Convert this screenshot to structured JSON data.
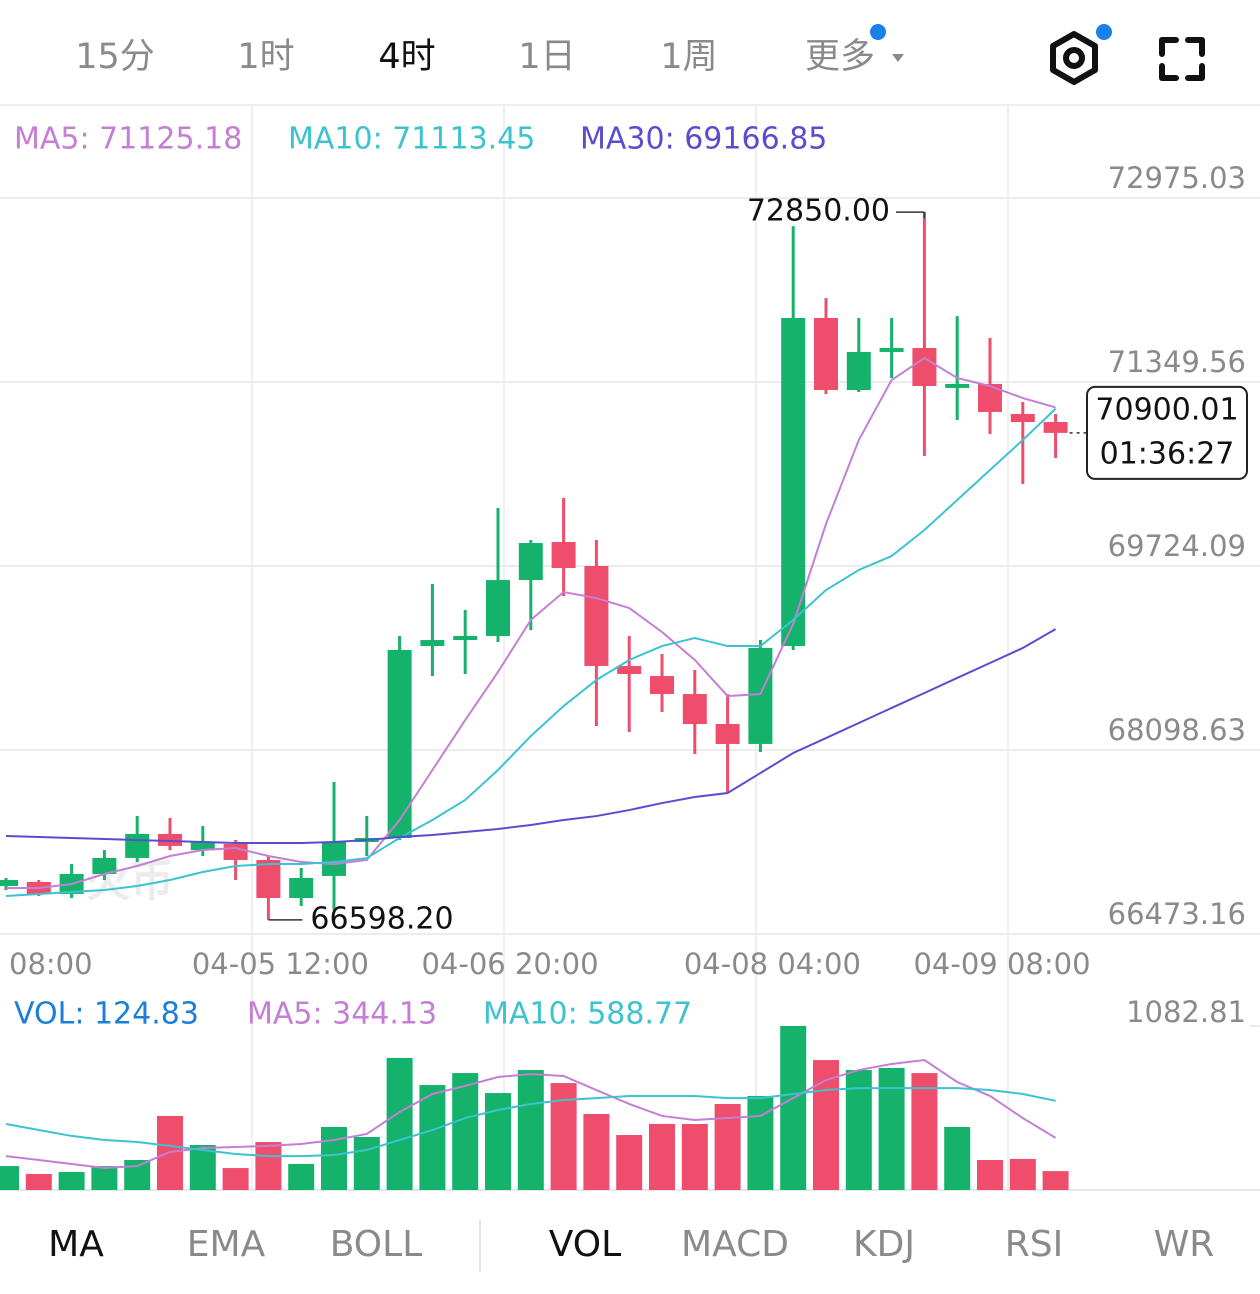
{
  "header": {
    "tabs": [
      "15分",
      "1时",
      "4时",
      "1日",
      "1周",
      "更多"
    ],
    "active_tab": 2
  },
  "watermark": "火币",
  "chart_data": [
    {
      "type": "candlestick",
      "categories": [
        null,
        "08:00",
        null,
        null,
        null,
        null,
        null,
        null,
        "04-05 12:00",
        null,
        null,
        null,
        null,
        null,
        null,
        "04-06 20:00",
        null,
        null,
        null,
        null,
        null,
        null,
        null,
        "04-08 04:00",
        null,
        null,
        null,
        null,
        null,
        null,
        "04-09 08:00",
        null,
        null
      ],
      "open": [
        66897,
        66933,
        66827,
        67003,
        67145,
        67357,
        67215,
        67268,
        67127,
        66791,
        66986,
        67286,
        67321,
        69017,
        69070,
        69106,
        69600,
        69936,
        69724,
        68841,
        68752,
        68593,
        68328,
        68152,
        69017,
        71915,
        71279,
        71615,
        71650,
        71297,
        71332,
        71067,
        70996
      ],
      "high": [
        66968,
        66950,
        67092,
        67215,
        67516,
        67498,
        67427,
        67304,
        67162,
        67056,
        67816,
        67516,
        69106,
        69565,
        69335,
        70236,
        69954,
        70325,
        69954,
        69106,
        68947,
        68805,
        68593,
        69070,
        72727,
        72091,
        71915,
        71915,
        72850,
        71932,
        71738,
        71173,
        71067
      ],
      "low": [
        66862,
        66809,
        66791,
        66950,
        67109,
        67215,
        67162,
        66950,
        66598.2,
        66721,
        66685,
        67162,
        67304,
        68752,
        68770,
        69053,
        69159,
        69459,
        68311,
        68258,
        68434,
        68063,
        67728,
        68081,
        68982,
        71243,
        71261,
        71385,
        70696,
        71014,
        70890,
        70448,
        70678
      ],
      "close": [
        66950,
        66827,
        67003,
        67145,
        67357,
        67251,
        67286,
        67127,
        66791,
        66968,
        67286,
        67321,
        68982,
        69070,
        69106,
        69600,
        69927,
        69706,
        68841,
        68770,
        68593,
        68328,
        68152,
        69000,
        71915,
        71279,
        71615,
        71650,
        71314,
        71332,
        71085,
        70996,
        70900.01
      ],
      "up_color": "#14b26b",
      "down_color": "#ee4d6b",
      "ylim": [
        66473.16,
        72975.03
      ],
      "yticks": [
        66473.16,
        68098.63,
        69724.09,
        71349.56,
        72975.03
      ],
      "grid": true,
      "series": [
        {
          "name": "MA5: 71125.18",
          "color": "#c47fd5",
          "values": [
            66879,
            66879,
            66915,
            67003,
            67074,
            67162,
            67215,
            67233,
            67162,
            67109,
            67091,
            67127,
            67480,
            67922,
            68363,
            68788,
            69247,
            69494,
            69441,
            69353,
            69141,
            68894,
            68575,
            68593,
            69212,
            70095,
            70837,
            71367,
            71561,
            71385,
            71314,
            71208,
            71125.18
          ]
        },
        {
          "name": "MA10: 71113.45",
          "color": "#3cc3cf",
          "values": [
            66809,
            66826,
            66844,
            66862,
            66897,
            66950,
            67021,
            67074,
            67091,
            67091,
            67109,
            67144,
            67321,
            67480,
            67657,
            67922,
            68222,
            68487,
            68717,
            68894,
            69017,
            69088,
            69017,
            69017,
            69247,
            69512,
            69689,
            69812,
            70042,
            70307,
            70572,
            70837,
            71113.45
          ]
        },
        {
          "name": "MA30: 69166.85",
          "color": "#5a4ccf",
          "values": [
            67339,
            67330,
            67321,
            67312,
            67303,
            67295,
            67286,
            67277,
            67277,
            67277,
            67286,
            67303,
            67330,
            67348,
            67374,
            67401,
            67436,
            67480,
            67515,
            67568,
            67630,
            67683,
            67719,
            67895,
            68072,
            68204,
            68337,
            68470,
            68602,
            68735,
            68867,
            69000,
            69166.85
          ]
        }
      ],
      "annotations": {
        "high": {
          "index": 28,
          "label": "72850.00"
        },
        "low": {
          "index": 8,
          "label": "66598.20"
        },
        "countdown": "01:36:27"
      }
    },
    {
      "type": "bar",
      "ylim": [
        0,
        1082.81
      ],
      "yticks": [
        1082.81
      ],
      "series": [
        {
          "name": "VOL: 124.83",
          "color": "#1a7fd6",
          "values": [
            158,
            106,
            119,
            158,
            198,
            489,
            297,
            145,
            317,
            172,
            416,
            350,
            872,
            693,
            772,
            640,
            792,
            706,
            502,
            363,
            436,
            436,
            568,
            621,
            1082.81,
            858,
            792,
            806,
            772,
            416,
            198,
            205,
            124.83
          ]
        },
        {
          "name": "MA5: 344.13",
          "color": "#c47fd5",
          "values": [
            224,
            198,
            172,
            145,
            158,
            251,
            277,
            284,
            291,
            304,
            330,
            370,
            515,
            634,
            687,
            746,
            766,
            753,
            660,
            568,
            489,
            462,
            475,
            489,
            607,
            726,
            792,
            832,
            858,
            713,
            621,
            475,
            344.13
          ]
        },
        {
          "name": "MA10: 588.77",
          "color": "#3cc3cf",
          "values": [
            436,
            396,
            357,
            330,
            317,
            291,
            264,
            238,
            224,
            224,
            231,
            264,
            330,
            396,
            475,
            528,
            568,
            594,
            607,
            621,
            621,
            621,
            607,
            607,
            634,
            660,
            673,
            673,
            673,
            673,
            660,
            634,
            588.77
          ]
        }
      ]
    }
  ],
  "indicator_tabs": {
    "main": [
      "MA",
      "EMA",
      "BOLL"
    ],
    "sub": [
      "VOL",
      "MACD",
      "KDJ",
      "RSI",
      "WR"
    ],
    "active_main": 0,
    "active_sub": 0
  }
}
